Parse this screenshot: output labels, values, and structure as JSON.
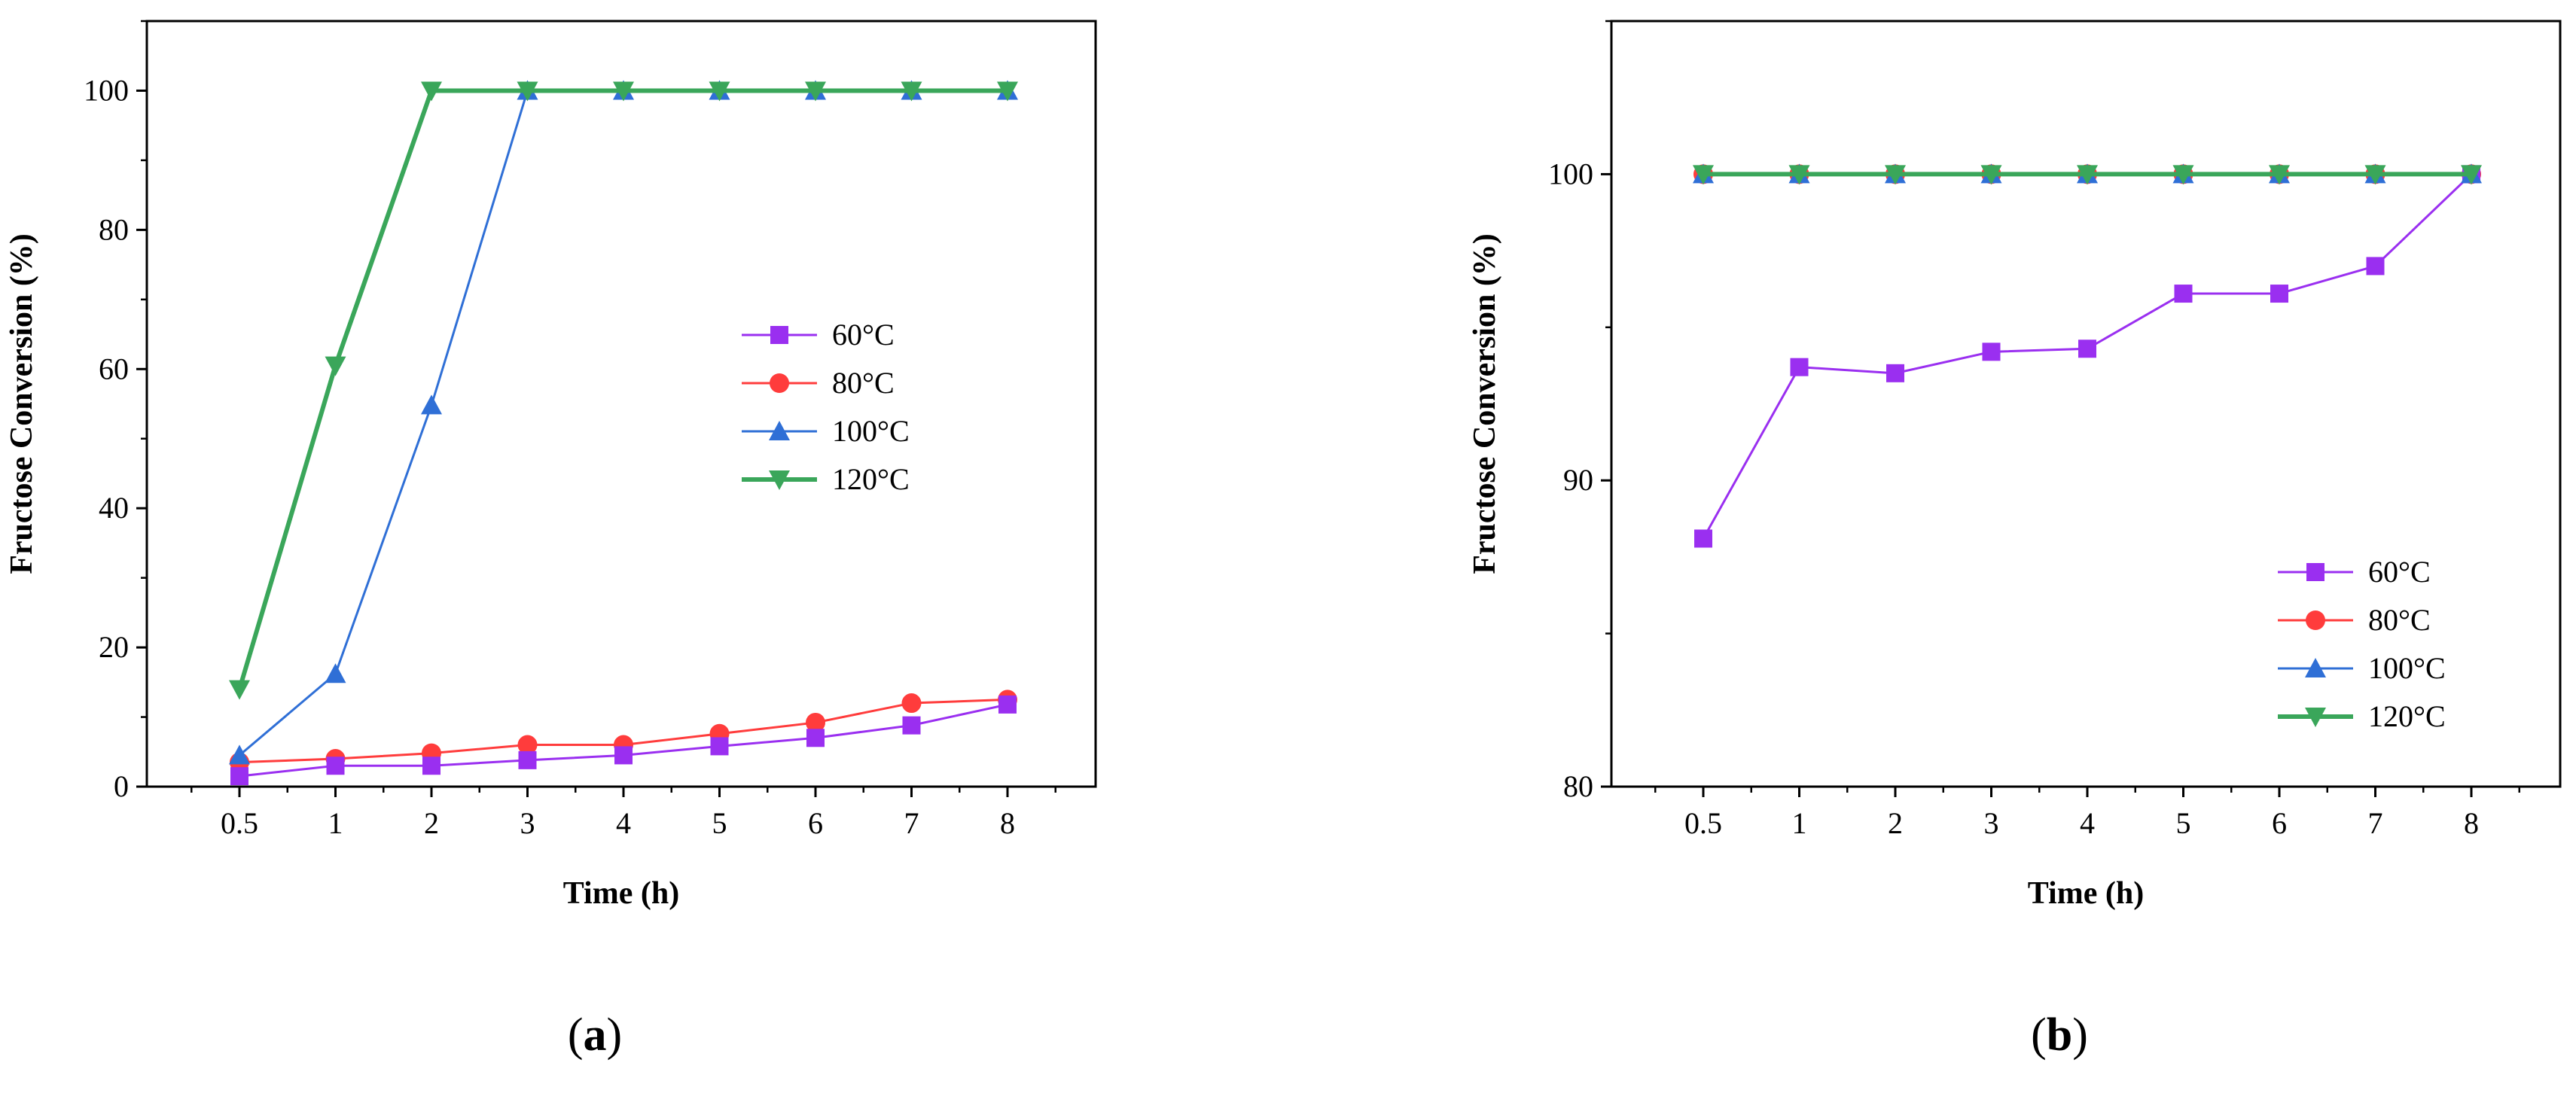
{
  "colors": {
    "60C": "#9a2ff0",
    "80C": "#ff3c3c",
    "100C": "#2f6fd6",
    "120C": "#3aa65a"
  },
  "chart_data": [
    {
      "type": "line",
      "panel_label": "a",
      "title": "",
      "xlabel": "Time (h)",
      "ylabel": "Fructose Conversion  (%)",
      "categories": [
        "0.5",
        "1",
        "2",
        "3",
        "4",
        "5",
        "6",
        "7",
        "8"
      ],
      "ylim": [
        0,
        110
      ],
      "yticks": [
        0,
        20,
        40,
        60,
        80,
        100
      ],
      "legend_position": "center-right",
      "series": [
        {
          "name": " 60°C",
          "key": "60C",
          "marker": "square",
          "values": [
            1.5,
            3.0,
            3.0,
            3.8,
            4.5,
            5.8,
            7.0,
            8.8,
            11.8
          ]
        },
        {
          "name": "80°C",
          "key": "80C",
          "marker": "circle",
          "values": [
            3.5,
            4.0,
            4.8,
            6.0,
            6.0,
            7.6,
            9.2,
            12.0,
            12.5
          ]
        },
        {
          "name": "100°C",
          "key": "100C",
          "marker": "triangle-up",
          "values": [
            4.5,
            16.2,
            54.8,
            100,
            100,
            100,
            100,
            100,
            100
          ]
        },
        {
          "name": "120°C",
          "key": "120C",
          "marker": "triangle-down",
          "values": [
            14.0,
            60.5,
            100,
            100,
            100,
            100,
            100,
            100,
            100
          ]
        }
      ]
    },
    {
      "type": "line",
      "panel_label": "b",
      "title": "",
      "xlabel": "Time (h)",
      "ylabel": "Fructose Conversion (%)",
      "categories": [
        "0.5",
        "1",
        "2",
        "3",
        "4",
        "5",
        "6",
        "7",
        "8"
      ],
      "ylim": [
        80,
        105
      ],
      "yticks": [
        80,
        90,
        100
      ],
      "legend_position": "bottom-right",
      "series": [
        {
          "name": "60°C",
          "key": "60C",
          "marker": "square",
          "values": [
            88.1,
            93.7,
            93.5,
            94.2,
            94.3,
            96.1,
            96.1,
            97.0,
            100
          ]
        },
        {
          "name": "80°C",
          "key": "80C",
          "marker": "circle",
          "values": [
            100,
            100,
            100,
            100,
            100,
            100,
            100,
            100,
            100
          ]
        },
        {
          "name": "100°C",
          "key": "100C",
          "marker": "triangle-up",
          "values": [
            100,
            100,
            100,
            100,
            100,
            100,
            100,
            100,
            100
          ]
        },
        {
          "name": "120°C",
          "key": "120C",
          "marker": "triangle-down",
          "values": [
            100,
            100,
            100,
            100,
            100,
            100,
            100,
            100,
            100
          ]
        }
      ]
    }
  ]
}
